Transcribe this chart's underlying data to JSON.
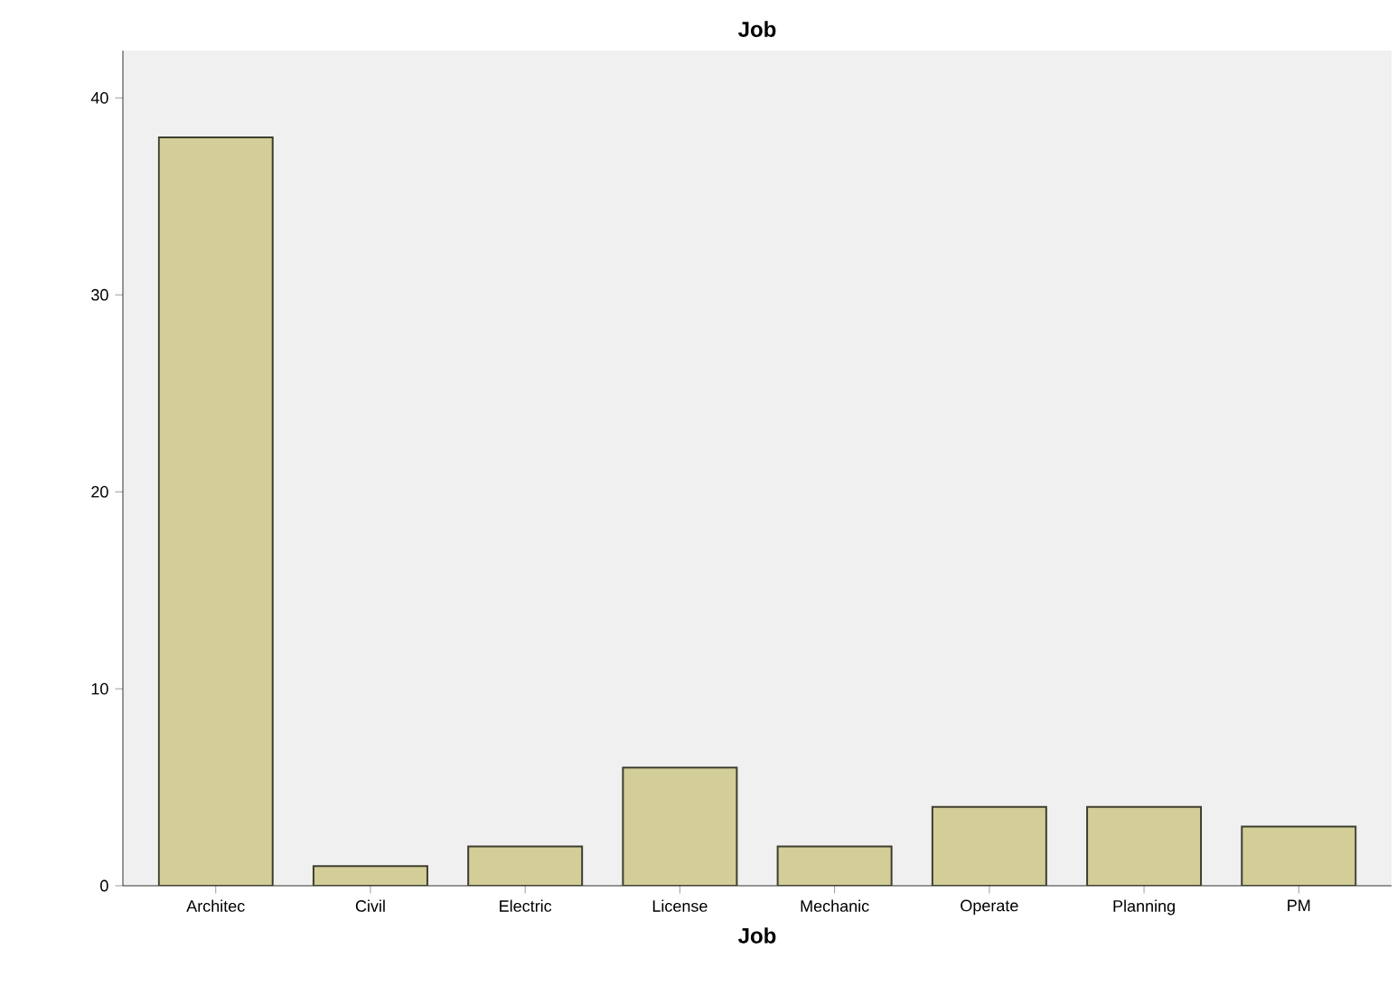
{
  "chart_data": {
    "type": "bar",
    "title": "Job",
    "xlabel": "Job",
    "categories": [
      "Architec",
      "Civil",
      "Electric",
      "License",
      "Mechanic",
      "Operate",
      "Planning",
      "PM"
    ],
    "values": [
      38,
      1,
      2,
      6,
      2,
      4,
      4,
      3
    ],
    "color": "#d3ce98",
    "ylim": [
      0,
      42.4
    ],
    "yticks": [
      0,
      10,
      20,
      30,
      40
    ],
    "grid": false
  }
}
